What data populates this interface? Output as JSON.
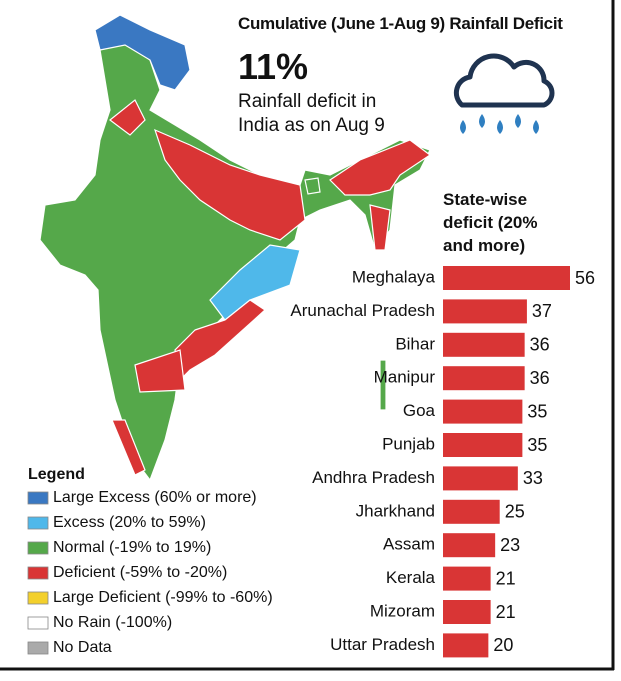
{
  "chart_data": {
    "type": "bar",
    "orientation": "horizontal",
    "title": "Cumulative (June 1-Aug 9) Rainfall Deficit",
    "headline": "11%",
    "subtitle": "Rainfall deficit in India as on Aug 9",
    "chart_heading": "State-wise deficit (20% and more)",
    "categories": [
      "Meghalaya",
      "Arunachal Pradesh",
      "Bihar",
      "Manipur",
      "Goa",
      "Punjab",
      "Andhra Pradesh",
      "Jharkhand",
      "Assam",
      "Kerala",
      "Mizoram",
      "Uttar Pradesh"
    ],
    "values": [
      56,
      37,
      36,
      36,
      35,
      35,
      33,
      25,
      23,
      21,
      21,
      20
    ],
    "color": "#d93535",
    "legend_title": "Legend",
    "legend": [
      {
        "label": "Large Excess (60% or more)",
        "color": "#3a78c2"
      },
      {
        "label": "Excess (20% to 59%)",
        "color": "#4fb8ea"
      },
      {
        "label": "Normal (-19% to 19%)",
        "color": "#55a84a"
      },
      {
        "label": "Deficient (-59% to -20%)",
        "color": "#d93535"
      },
      {
        "label": "Large Deficient (-99% to -60%)",
        "color": "#f3d02c"
      },
      {
        "label": "No Rain (-100%)",
        "color": "#ffffff"
      },
      {
        "label": "No Data",
        "color": "#aaaaaa"
      }
    ]
  }
}
